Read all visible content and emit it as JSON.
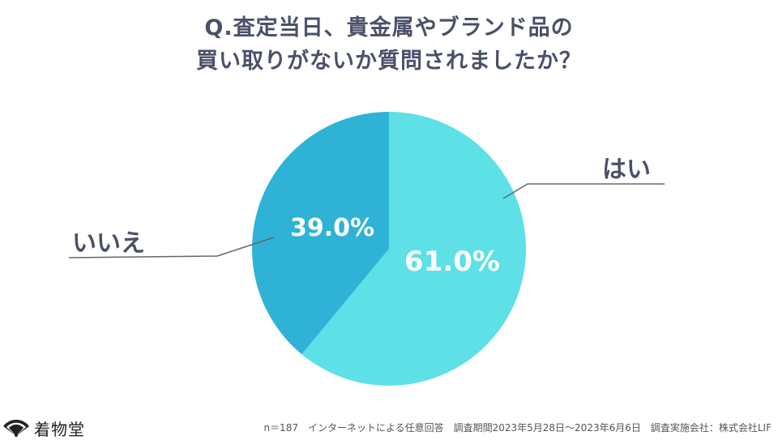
{
  "chart_data": {
    "type": "pie",
    "title_lines": [
      "Q.査定当日、貴金属やブランド品の",
      "買い取りがないか質問されましたか？"
    ],
    "slices": [
      {
        "label": "はい",
        "value": 61.0,
        "value_label": "61.0%",
        "color": "#5de0e6"
      },
      {
        "label": "いいえ",
        "value": 39.0,
        "value_label": "39.0%",
        "color": "#2eb3d6"
      }
    ],
    "start_angle_deg": 0,
    "direction": "clockwise"
  },
  "footer": "n＝187　インターネットによる任意回答　調査期間2023年5月28日〜2023年6月6日　調査実施会社：株式会社LIF",
  "logo": {
    "text": "着物堂"
  },
  "colors": {
    "title": "#4a5068",
    "leader": "#666666",
    "slice_label": "#ffffff"
  }
}
